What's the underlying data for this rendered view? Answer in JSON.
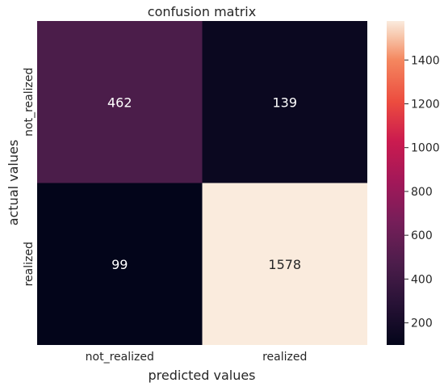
{
  "chart_data": {
    "type": "heatmap",
    "title": "confusion matrix",
    "xlabel": "predicted values",
    "ylabel": "actual values",
    "x_categories": [
      "not_realized",
      "realized"
    ],
    "y_categories": [
      "not_realized",
      "realized"
    ],
    "values": [
      [
        462,
        139
      ],
      [
        99,
        1578
      ]
    ],
    "colorbar": {
      "min": 99,
      "max": 1578,
      "ticks": [
        200,
        400,
        600,
        800,
        1000,
        1200,
        1400
      ],
      "colormap": "rocket"
    },
    "annotation_colors": {
      "on_dark": "#ffffff",
      "on_light": "#262626"
    }
  }
}
